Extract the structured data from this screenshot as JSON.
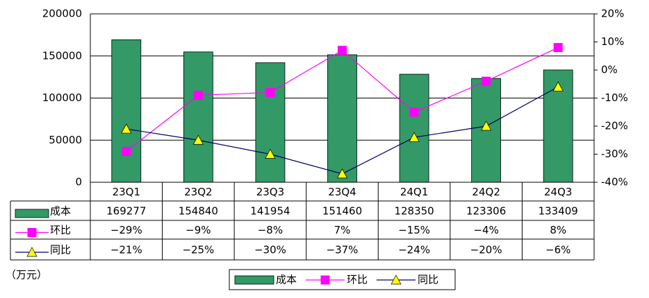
{
  "chart_data": {
    "type": "bar",
    "categories": [
      "23Q1",
      "23Q2",
      "23Q3",
      "23Q4",
      "24Q1",
      "24Q2",
      "24Q3"
    ],
    "series": [
      {
        "name": "成本",
        "type": "bar",
        "color": "#339966",
        "values": [
          169277,
          154840,
          141954,
          151460,
          128350,
          123306,
          133409
        ]
      },
      {
        "name": "环比",
        "type": "line",
        "axis": "y2",
        "color": "#ff00ff",
        "marker": "square",
        "marker_color": "#ff00ff",
        "values": [
          -29,
          -9,
          -8,
          7,
          -15,
          -4,
          8
        ],
        "value_labels": [
          "−29%",
          "−9%",
          "−8%",
          "7%",
          "−15%",
          "−4%",
          "8%"
        ]
      },
      {
        "name": "同比",
        "type": "line",
        "axis": "y2",
        "color": "#000066",
        "marker": "triangle",
        "marker_color": "#ffff00",
        "values": [
          -21,
          -25,
          -30,
          -37,
          -24,
          -20,
          -6
        ],
        "value_labels": [
          "−21%",
          "−25%",
          "−30%",
          "−37%",
          "−24%",
          "−20%",
          "−6%"
        ]
      }
    ],
    "ylim": [
      0,
      200000
    ],
    "yticks": [
      0,
      50000,
      100000,
      150000,
      200000
    ],
    "y2lim": [
      -40,
      20
    ],
    "y2ticks": [
      {
        "value": -40,
        "label": "-40%"
      },
      {
        "value": -30,
        "label": "-30%"
      },
      {
        "value": -20,
        "label": "-20%"
      },
      {
        "value": -10,
        "label": "-10%"
      },
      {
        "value": 0,
        "label": "0%"
      },
      {
        "value": 10,
        "label": "10%"
      },
      {
        "value": 20,
        "label": "20%"
      }
    ],
    "grid": true,
    "unit_label": "（万元）"
  }
}
